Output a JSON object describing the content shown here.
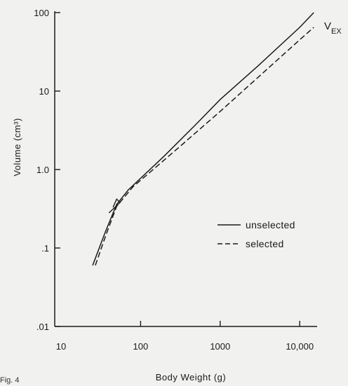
{
  "chart_data": {
    "type": "line",
    "figure_label": "Fig. 4",
    "xlabel": "Body Weight (g)",
    "ylabel": "Volume (cm³)",
    "xscale": "log",
    "yscale": "log",
    "xlim": [
      15,
      20000
    ],
    "ylim": [
      0.01,
      100
    ],
    "x_ticks": [
      {
        "value": 10,
        "label": "10"
      },
      {
        "value": 100,
        "label": "100"
      },
      {
        "value": 1000,
        "label": "1000"
      },
      {
        "value": 10000,
        "label": "10,000"
      }
    ],
    "y_ticks": [
      {
        "value": 0.01,
        "label": ".01"
      },
      {
        "value": 0.1,
        "label": ".1"
      },
      {
        "value": 1,
        "label": "1.0"
      },
      {
        "value": 10,
        "label": "10"
      },
      {
        "value": 100,
        "label": "100"
      }
    ],
    "annotation": {
      "main": "V",
      "sub": "EX"
    },
    "legend_position": "right",
    "grid": false,
    "series": [
      {
        "name": "unselected",
        "style": "solid",
        "color": "#1a1a1a",
        "points": [
          [
            25,
            0.06
          ],
          [
            36,
            0.16
          ],
          [
            50,
            0.36
          ],
          [
            70,
            0.55
          ],
          [
            200,
            1.5
          ],
          [
            500,
            3.8
          ],
          [
            1000,
            7.8
          ],
          [
            3000,
            21
          ],
          [
            10000,
            65
          ],
          [
            15000,
            100
          ]
        ]
      },
      {
        "name": "selected",
        "style": "dashed",
        "color": "#1a1a1a",
        "points": [
          [
            27,
            0.06
          ],
          [
            37,
            0.15
          ],
          [
            50,
            0.34
          ],
          [
            80,
            0.6
          ],
          [
            300,
            1.9
          ],
          [
            1000,
            5.5
          ],
          [
            3000,
            15
          ],
          [
            10000,
            45
          ],
          [
            15000,
            65
          ]
        ]
      }
    ],
    "hook": [
      [
        40,
        0.28
      ],
      [
        55,
        0.38
      ],
      [
        50,
        0.42
      ],
      [
        45,
        0.33
      ]
    ]
  }
}
